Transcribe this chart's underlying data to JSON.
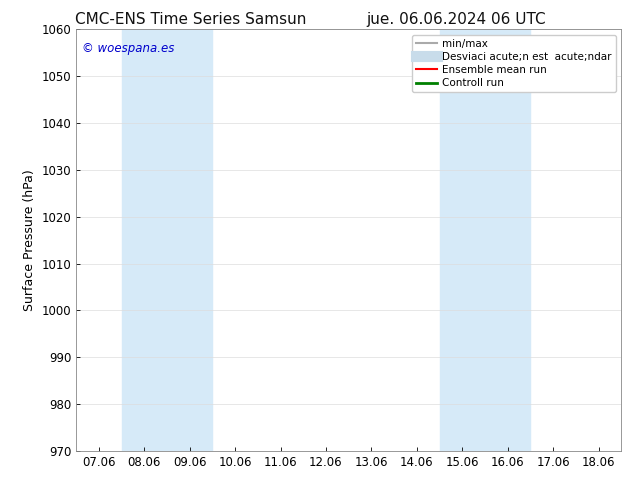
{
  "title_left": "CMC-ENS Time Series Samsun",
  "title_right": "jue. 06.06.2024 06 UTC",
  "ylabel": "Surface Pressure (hPa)",
  "ylim": [
    970,
    1060
  ],
  "yticks": [
    970,
    980,
    990,
    1000,
    1010,
    1020,
    1030,
    1040,
    1050,
    1060
  ],
  "xtick_labels": [
    "07.06",
    "08.06",
    "09.06",
    "10.06",
    "11.06",
    "12.06",
    "13.06",
    "14.06",
    "15.06",
    "16.06",
    "17.06",
    "18.06"
  ],
  "xtick_positions": [
    0,
    1,
    2,
    3,
    4,
    5,
    6,
    7,
    8,
    9,
    10,
    11
  ],
  "xlim": [
    -0.5,
    11.5
  ],
  "shaded_bands": [
    {
      "x_start": 1.0,
      "x_end": 3.0,
      "color": "#d6eaf8"
    },
    {
      "x_start": 8.0,
      "x_end": 10.0,
      "color": "#d6eaf8"
    }
  ],
  "watermark": "© woespana.es",
  "watermark_color": "#0000cc",
  "legend_entries": [
    {
      "label": "min/max",
      "color": "#aaaaaa",
      "lw": 1.5,
      "linestyle": "-"
    },
    {
      "label": "Desviaci acute;n est  acute;ndar",
      "color": "#c8dcea",
      "lw": 8,
      "linestyle": "-"
    },
    {
      "label": "Ensemble mean run",
      "color": "#ff0000",
      "lw": 1.5,
      "linestyle": "-"
    },
    {
      "label": "Controll run",
      "color": "#008000",
      "lw": 2,
      "linestyle": "-"
    }
  ],
  "bg_color": "#ffffff",
  "plot_bg_color": "#ffffff",
  "title_fontsize": 11,
  "label_fontsize": 9,
  "tick_fontsize": 8.5
}
